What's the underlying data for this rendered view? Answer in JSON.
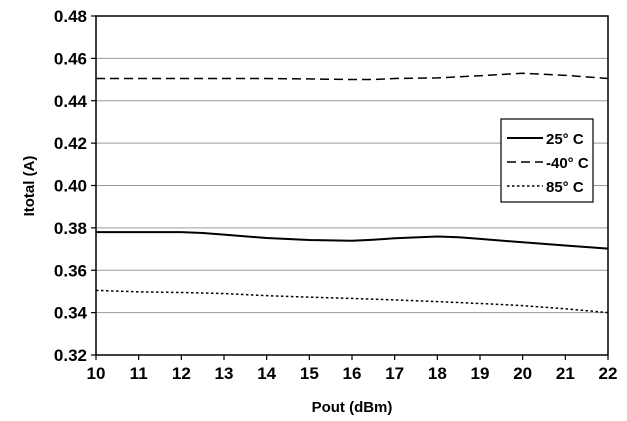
{
  "chart_data": {
    "type": "line",
    "title": "",
    "xlabel": "Pout (dBm)",
    "ylabel": "Itotal (A)",
    "xlim": [
      10,
      22
    ],
    "ylim": [
      0.32,
      0.48
    ],
    "x_ticks": [
      "10",
      "11",
      "12",
      "13",
      "14",
      "15",
      "16",
      "17",
      "18",
      "19",
      "20",
      "21",
      "22"
    ],
    "y_ticks": [
      "0.32",
      "0.34",
      "0.36",
      "0.38",
      "0.40",
      "0.42",
      "0.44",
      "0.46",
      "0.48"
    ],
    "grid": "horizontal",
    "legend_position": "right",
    "series": [
      {
        "name": "25° C",
        "style": "solid",
        "x": [
          10,
          11,
          12,
          12.5,
          13,
          14,
          15,
          16,
          16.5,
          17,
          18,
          18.5,
          19,
          20,
          21,
          22
        ],
        "y": [
          0.378,
          0.378,
          0.378,
          0.3776,
          0.3768,
          0.3752,
          0.3743,
          0.3739,
          0.3744,
          0.3751,
          0.3759,
          0.3756,
          0.3748,
          0.3732,
          0.3717,
          0.3702
        ]
      },
      {
        "name": "-40° C",
        "style": "dashed",
        "x": [
          10,
          11,
          12,
          13,
          14,
          15,
          16,
          16.5,
          17,
          18,
          19,
          20,
          21,
          22
        ],
        "y": [
          0.4505,
          0.4505,
          0.4505,
          0.4505,
          0.4505,
          0.4503,
          0.45,
          0.45,
          0.4505,
          0.4508,
          0.4518,
          0.453,
          0.452,
          0.4505
        ]
      },
      {
        "name": "85° C",
        "style": "dotted",
        "x": [
          10,
          11,
          12,
          13,
          14,
          15,
          16,
          17,
          18,
          19,
          20,
          21,
          22
        ],
        "y": [
          0.3505,
          0.3498,
          0.3495,
          0.349,
          0.348,
          0.3473,
          0.3467,
          0.346,
          0.3452,
          0.3443,
          0.3433,
          0.3418,
          0.34
        ]
      }
    ]
  }
}
